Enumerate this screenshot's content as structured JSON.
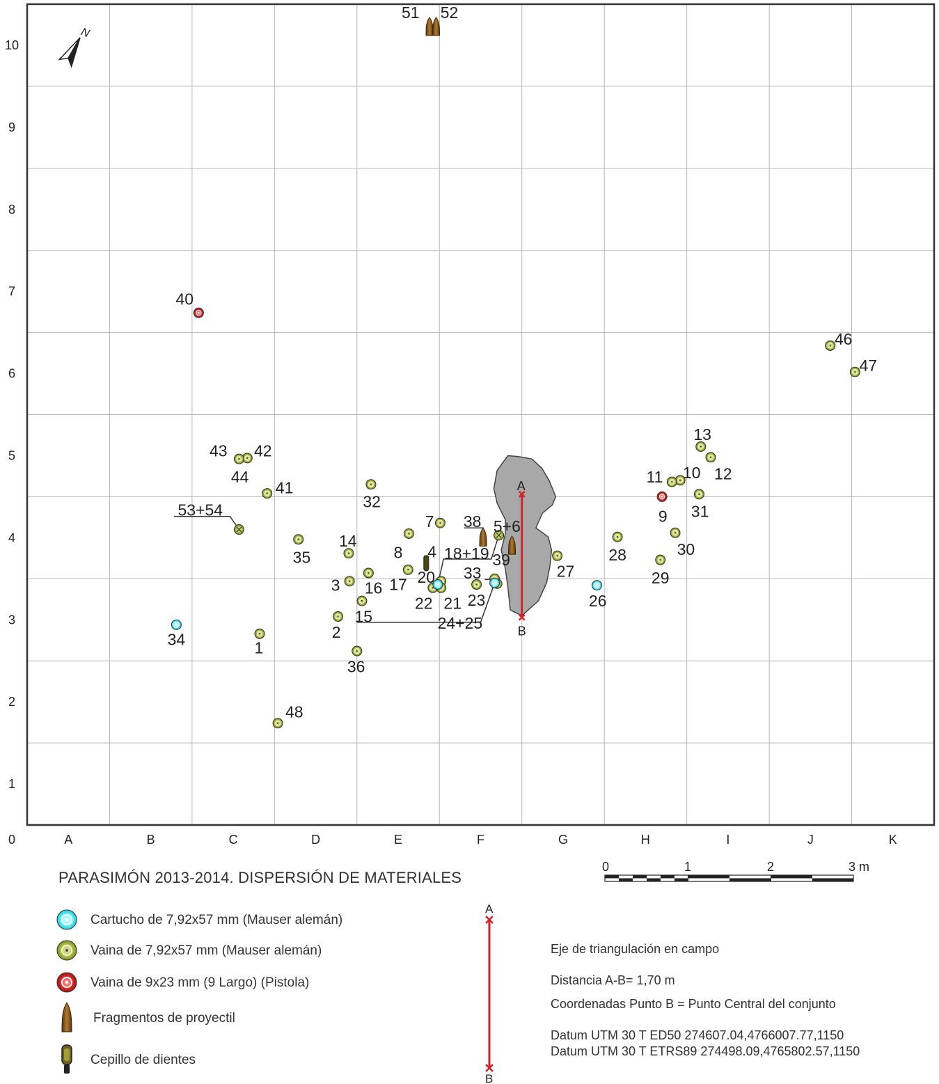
{
  "title": "PARASIMÓN 2013-2014. DISPERSIÓN DE MATERIALES",
  "north": "N",
  "grid": {
    "x_labels": [
      "0",
      "A",
      "B",
      "C",
      "D",
      "E",
      "F",
      "G",
      "H",
      "I",
      "J",
      "K"
    ],
    "y_labels": [
      "1",
      "2",
      "3",
      "4",
      "5",
      "6",
      "7",
      "8",
      "9",
      "10"
    ]
  },
  "colors": {
    "cartucho": "#33e6f0",
    "vaina_mauser": "#a8b83a",
    "vaina_pistola": "#d02525",
    "fragmento": "#8a5a1e",
    "cepillo": "#5a5418",
    "axis": "#d0232a",
    "stone": "#a8a8a8"
  },
  "axis_ab": {
    "a_label": "A",
    "b_label": "B"
  },
  "scale_bar": {
    "labels": [
      "0",
      "1",
      "2",
      "3 m"
    ]
  },
  "legend": [
    {
      "icon": "cartucho",
      "label": "Cartucho de 7,92x57 mm (Mauser alemán)"
    },
    {
      "icon": "vaina_mauser",
      "label": "Vaina de 7,92x57 mm (Mauser alemán)"
    },
    {
      "icon": "vaina_pistola",
      "label": "Vaina de 9x23 mm (9 Largo) (Pistola)"
    },
    {
      "icon": "fragmento",
      "label": "Fragmentos de proyectil"
    },
    {
      "icon": "cepillo",
      "label": "Cepillo de dientes"
    }
  ],
  "info": {
    "line1": "Eje de triangulación en campo",
    "line2": "Distancia A-B= 1,70 m",
    "line3": "Coordenadas Punto B = Punto Central del conjunto",
    "line4": "Datum UTM 30 T ED50 274607.04,4766007.77,1150",
    "line5": "Datum UTM 30 T ETRS89 274498.09,4765802.57,1150"
  },
  "finds": [
    {
      "t": "mauser",
      "x": 2.82,
      "y": 2.33,
      "label": "1"
    },
    {
      "t": "mauser",
      "x": 3.77,
      "y": 2.54,
      "label": "2"
    },
    {
      "t": "mauser",
      "x": 3.91,
      "y": 2.97,
      "label": "3"
    },
    {
      "t": "mauser",
      "x": 5.02,
      "y": 2.97,
      "label": "4"
    },
    {
      "t": "mauser_x",
      "x": 5.72,
      "y": 3.53,
      "label": "5+6"
    },
    {
      "t": "mauser",
      "x": 5.01,
      "y": 3.68,
      "label": "7"
    },
    {
      "t": "mauser",
      "x": 4.63,
      "y": 3.55,
      "label": "8"
    },
    {
      "t": "pistola",
      "x": 7.7,
      "y": 4.0,
      "label": "9"
    },
    {
      "t": "mauser",
      "x": 7.92,
      "y": 4.2,
      "label": "10"
    },
    {
      "t": "mauser",
      "x": 7.82,
      "y": 4.18,
      "label": "11"
    },
    {
      "t": "mauser",
      "x": 8.29,
      "y": 4.48,
      "label": "12"
    },
    {
      "t": "mauser",
      "x": 8.17,
      "y": 4.61,
      "label": "13"
    },
    {
      "t": "mauser",
      "x": 3.9,
      "y": 3.31,
      "label": "14"
    },
    {
      "t": "mauser",
      "x": 4.06,
      "y": 2.73,
      "label": "15"
    },
    {
      "t": "mauser",
      "x": 4.14,
      "y": 3.07,
      "label": "16"
    },
    {
      "t": "mauser",
      "x": 4.62,
      "y": 3.11,
      "label": "17"
    },
    {
      "t": "mauser",
      "x": 4.92,
      "y": 2.89,
      "label": "22"
    },
    {
      "t": "mauser",
      "x": 5.02,
      "y": 2.89,
      "label": "21"
    },
    {
      "t": "cartucho",
      "x": 4.98,
      "y": 2.93,
      "label": "24"
    },
    {
      "t": "mauser",
      "x": 5.45,
      "y": 2.93,
      "label": "23"
    },
    {
      "t": "mauser",
      "x": 5.67,
      "y": 3.0,
      "label": "33"
    },
    {
      "t": "mauser",
      "x": 5.7,
      "y": 2.94,
      "label": "25"
    },
    {
      "t": "cartucho",
      "x": 5.67,
      "y": 2.95,
      "label": "24+25"
    },
    {
      "t": "cartucho",
      "x": 6.91,
      "y": 2.92,
      "label": "26"
    },
    {
      "t": "mauser",
      "x": 6.43,
      "y": 3.28,
      "label": "27"
    },
    {
      "t": "mauser",
      "x": 7.16,
      "y": 3.51,
      "label": "28"
    },
    {
      "t": "mauser",
      "x": 7.68,
      "y": 3.23,
      "label": "29"
    },
    {
      "t": "mauser",
      "x": 7.86,
      "y": 3.56,
      "label": "30"
    },
    {
      "t": "mauser",
      "x": 8.15,
      "y": 4.03,
      "label": "31"
    },
    {
      "t": "mauser",
      "x": 4.17,
      "y": 4.15,
      "label": "32"
    },
    {
      "t": "cartucho",
      "x": 1.81,
      "y": 2.44,
      "label": "34"
    },
    {
      "t": "mauser",
      "x": 3.29,
      "y": 3.48,
      "label": "35"
    },
    {
      "t": "mauser",
      "x": 4.0,
      "y": 2.12,
      "label": "36"
    },
    {
      "t": "pistola",
      "x": 2.08,
      "y": 6.24,
      "label": "40"
    },
    {
      "t": "mauser",
      "x": 2.91,
      "y": 4.04,
      "label": "41"
    },
    {
      "t": "mauser",
      "x": 2.67,
      "y": 4.47,
      "label": "42"
    },
    {
      "t": "mauser",
      "x": 2.57,
      "y": 4.46,
      "label": "43"
    },
    {
      "t": "mauser",
      "x": 3.04,
      "y": 1.24,
      "label": "48"
    },
    {
      "t": "mauser",
      "x": 9.74,
      "y": 5.84,
      "label": "46"
    },
    {
      "t": "mauser",
      "x": 10.04,
      "y": 5.52,
      "label": "47"
    },
    {
      "t": "mauser_x",
      "x": 2.57,
      "y": 3.6,
      "label": "53+54"
    },
    {
      "t": "fragmento",
      "x": 5.53,
      "y": 3.5,
      "label": "38"
    },
    {
      "t": "fragmento",
      "x": 5.88,
      "y": 3.4,
      "label": "39"
    },
    {
      "t": "cepillo",
      "x": 4.84,
      "y": 3.19,
      "label": "20"
    },
    {
      "t": "fragmento",
      "x": 4.88,
      "y": 9.72,
      "label": "51"
    },
    {
      "t": "fragmento",
      "x": 4.96,
      "y": 9.72,
      "label": "52"
    }
  ],
  "labels": [
    {
      "text": "1",
      "x": 2.81,
      "y": 2.16
    },
    {
      "text": "2",
      "x": 3.75,
      "y": 2.35
    },
    {
      "text": "3",
      "x": 3.74,
      "y": 2.92
    },
    {
      "text": "4",
      "x": 4.91,
      "y": 3.33
    },
    {
      "text": "5+6",
      "x": 5.82,
      "y": 3.64
    },
    {
      "text": "7",
      "x": 4.88,
      "y": 3.7
    },
    {
      "text": "8",
      "x": 4.5,
      "y": 3.32
    },
    {
      "text": "9",
      "x": 7.71,
      "y": 3.76
    },
    {
      "text": "10",
      "x": 8.06,
      "y": 4.29
    },
    {
      "text": "11",
      "x": 7.61,
      "y": 4.24
    },
    {
      "text": "12",
      "x": 8.44,
      "y": 4.28
    },
    {
      "text": "13",
      "x": 8.19,
      "y": 4.76
    },
    {
      "text": "14",
      "x": 3.89,
      "y": 3.46
    },
    {
      "text": "15",
      "x": 4.08,
      "y": 2.54
    },
    {
      "text": "16",
      "x": 4.2,
      "y": 2.89
    },
    {
      "text": "17",
      "x": 4.5,
      "y": 2.93
    },
    {
      "text": "18+19",
      "x": 5.33,
      "y": 3.31
    },
    {
      "text": "20",
      "x": 4.84,
      "y": 3.02
    },
    {
      "text": "21",
      "x": 5.16,
      "y": 2.7
    },
    {
      "text": "22",
      "x": 4.81,
      "y": 2.7
    },
    {
      "text": "23",
      "x": 5.45,
      "y": 2.74
    },
    {
      "text": "24+25",
      "x": 5.25,
      "y": 2.46
    },
    {
      "text": "26",
      "x": 6.92,
      "y": 2.73
    },
    {
      "text": "27",
      "x": 6.53,
      "y": 3.09
    },
    {
      "text": "28",
      "x": 7.16,
      "y": 3.29
    },
    {
      "text": "29",
      "x": 7.68,
      "y": 3.01
    },
    {
      "text": "30",
      "x": 7.99,
      "y": 3.36
    },
    {
      "text": "31",
      "x": 8.16,
      "y": 3.82
    },
    {
      "text": "32",
      "x": 4.18,
      "y": 3.94
    },
    {
      "text": "33",
      "x": 5.4,
      "y": 3.07
    },
    {
      "text": "34",
      "x": 1.81,
      "y": 2.26
    },
    {
      "text": "35",
      "x": 3.33,
      "y": 3.26
    },
    {
      "text": "36",
      "x": 3.99,
      "y": 1.93
    },
    {
      "text": "38",
      "x": 5.4,
      "y": 3.7
    },
    {
      "text": "39",
      "x": 5.75,
      "y": 3.23
    },
    {
      "text": "40",
      "x": 1.91,
      "y": 6.41
    },
    {
      "text": "41",
      "x": 3.12,
      "y": 4.11
    },
    {
      "text": "42",
      "x": 2.86,
      "y": 4.56
    },
    {
      "text": "43",
      "x": 2.32,
      "y": 4.56
    },
    {
      "text": "44",
      "x": 2.58,
      "y": 4.24
    },
    {
      "text": "46",
      "x": 9.9,
      "y": 5.92
    },
    {
      "text": "47",
      "x": 10.2,
      "y": 5.6
    },
    {
      "text": "48",
      "x": 3.24,
      "y": 1.38
    },
    {
      "text": "51",
      "x": 4.65,
      "y": 9.9
    },
    {
      "text": "52",
      "x": 5.12,
      "y": 9.9
    },
    {
      "text": "53+54",
      "x": 2.1,
      "y": 3.84
    }
  ]
}
